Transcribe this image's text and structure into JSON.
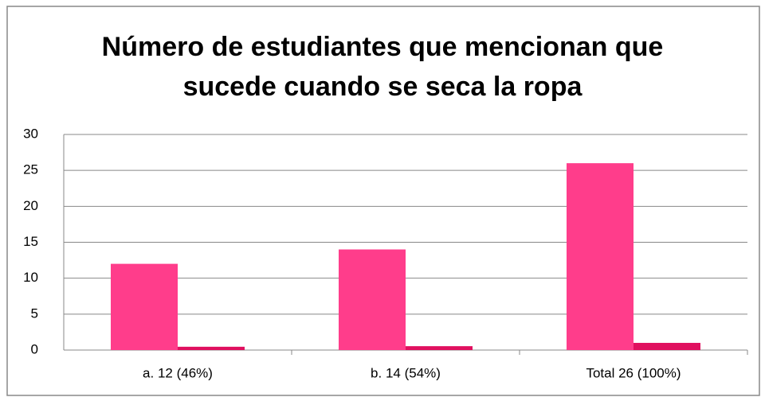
{
  "chart_data": {
    "type": "bar",
    "title": "Número de estudiantes que mencionan que sucede cuando se seca la ropa",
    "categories": [
      "a. 12 (46%)",
      "b. 14 (54%)",
      "Total 26 (100%)"
    ],
    "series": [
      {
        "color": "#ff3d8b",
        "values": [
          12,
          14,
          26
        ]
      },
      {
        "color": "#e0105f",
        "values": [
          0.46,
          0.54,
          1
        ]
      }
    ],
    "ylim": [
      0,
      30
    ],
    "yticks": [
      0,
      5,
      10,
      15,
      20,
      25,
      30
    ],
    "grid": true
  }
}
